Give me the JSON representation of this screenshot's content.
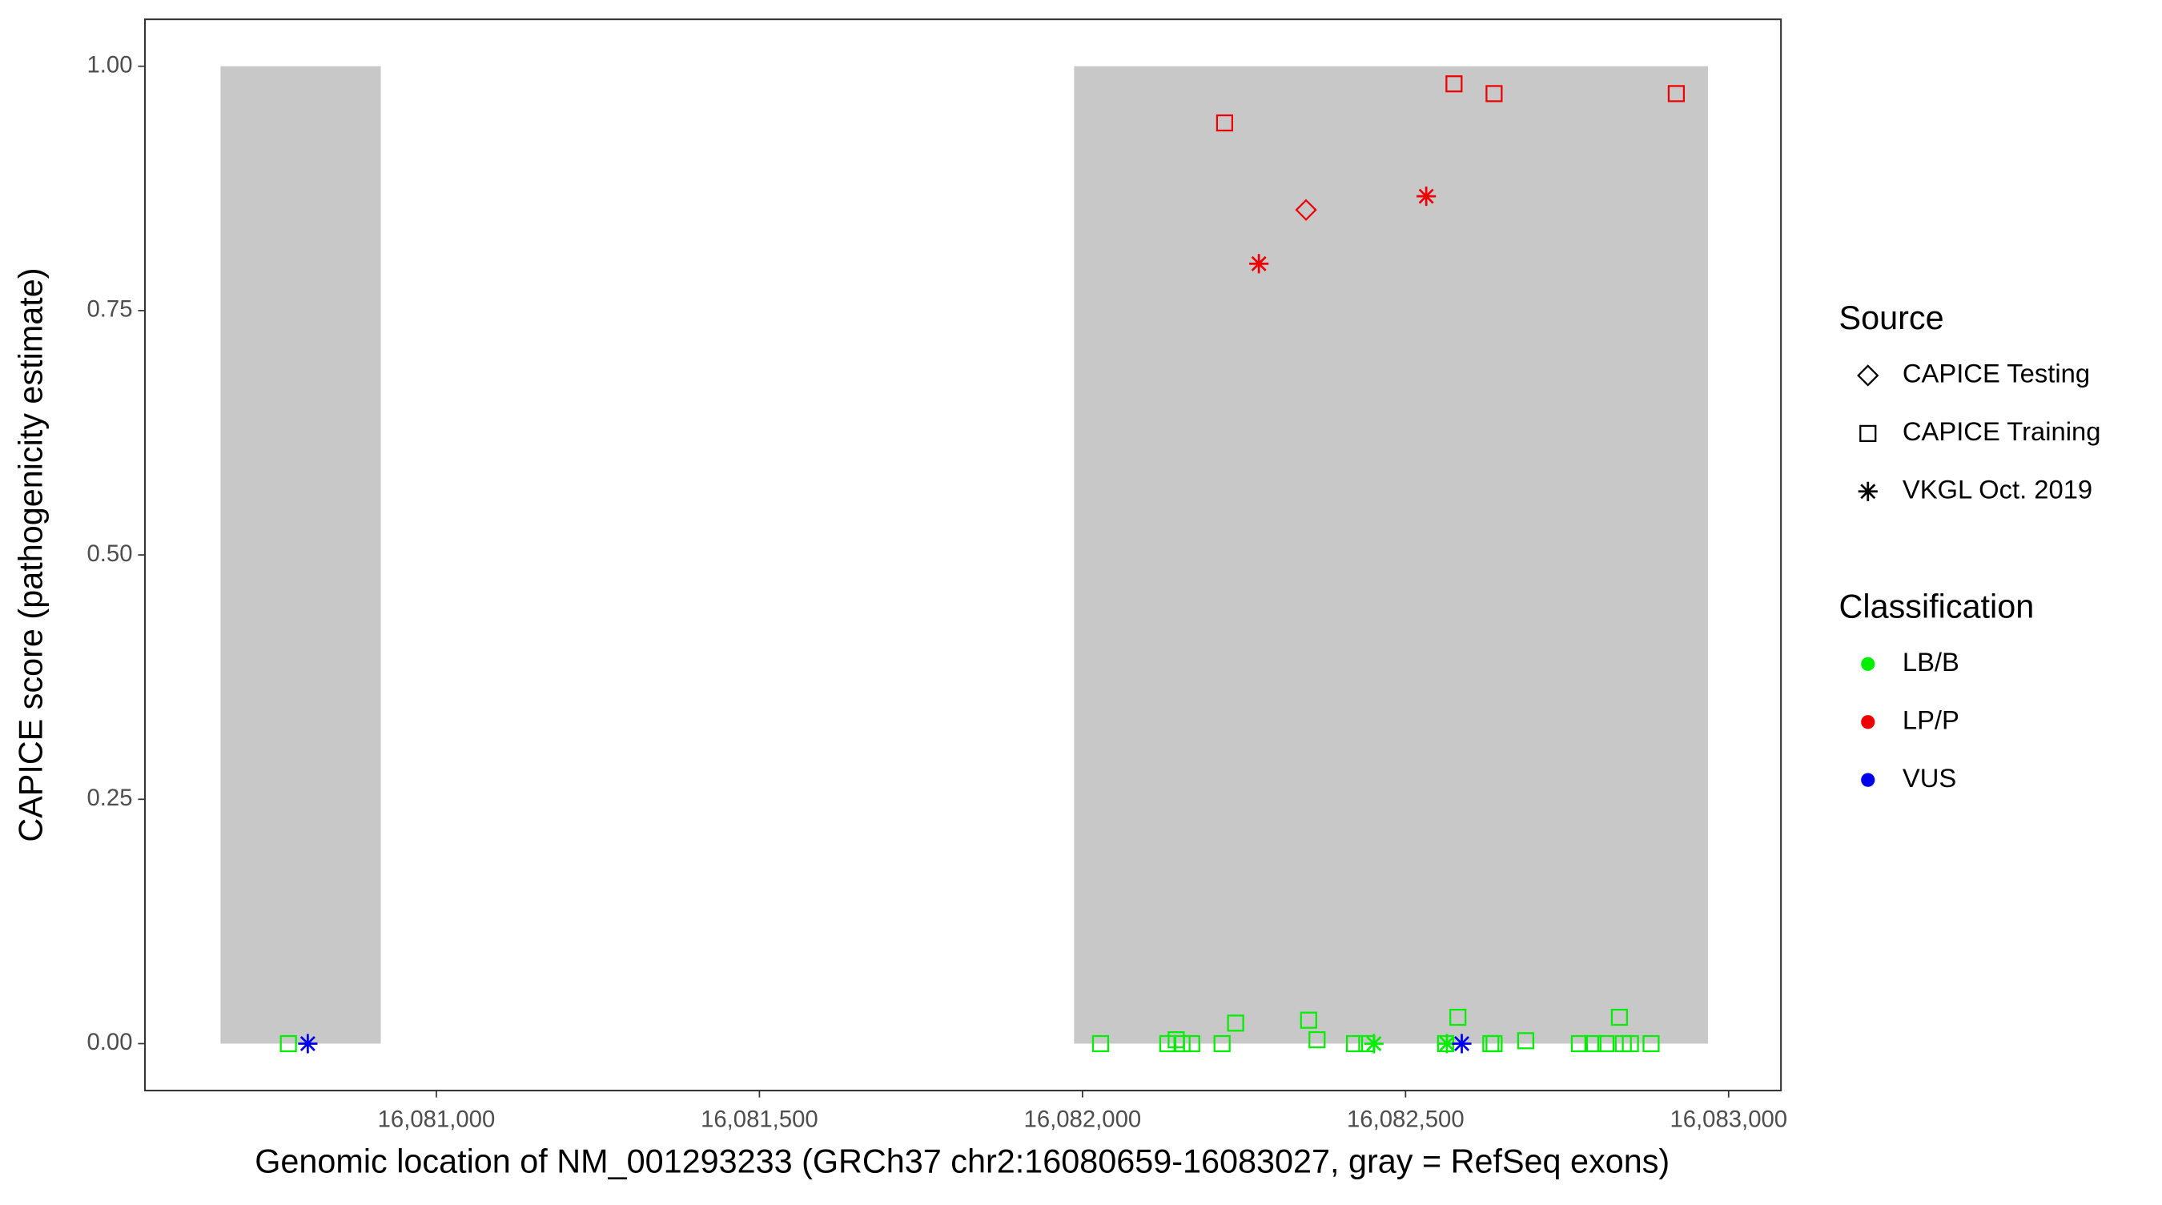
{
  "chart_data": {
    "type": "scatter",
    "x_label": "Genomic location of NM_001293233 (GRCh37 chr2:16080659-16083027, gray = RefSeq exons)",
    "y_label": "CAPICE score (pathogenicity estimate)",
    "xlim": [
      16080549,
      16083081
    ],
    "ylim": [
      -0.048,
      1.048
    ],
    "xticks": [
      {
        "value": 16081000,
        "label": "16,081,000"
      },
      {
        "value": 16081500,
        "label": "16,081,500"
      },
      {
        "value": 16082000,
        "label": "16,082,000"
      },
      {
        "value": 16082500,
        "label": "16,082,500"
      },
      {
        "value": 16083000,
        "label": "16,083,000"
      }
    ],
    "yticks": [
      {
        "value": 0,
        "label": "0.00"
      },
      {
        "value": 0.25,
        "label": "0.25"
      },
      {
        "value": 0.5,
        "label": "0.50"
      },
      {
        "value": 0.75,
        "label": "0.75"
      },
      {
        "value": 1,
        "label": "1.00"
      }
    ],
    "exons": [
      {
        "start": 16080666,
        "end": 16080914,
        "color": "#c8c8c8"
      },
      {
        "start": 16081987,
        "end": 16082968,
        "color": "#c8c8c8"
      }
    ],
    "source_legend": {
      "title": "Source",
      "items": [
        {
          "name": "CAPICE Testing",
          "shape": "diamond"
        },
        {
          "name": "CAPICE Training",
          "shape": "square"
        },
        {
          "name": "VKGL Oct. 2019",
          "shape": "asterisk"
        }
      ]
    },
    "color_legend": {
      "title": "Classification",
      "items": [
        {
          "name": "LB/B",
          "color": "#00ee00"
        },
        {
          "name": "LP/P",
          "color": "#ee0000"
        },
        {
          "name": "VUS",
          "color": "#0000ee"
        }
      ]
    },
    "series": [
      {
        "source": "CAPICE Training",
        "classification": "LP/P",
        "x": [
          16082220,
          16082575,
          16082637,
          16082919
        ],
        "y": [
          0.942,
          0.982,
          0.972,
          0.972
        ]
      },
      {
        "source": "CAPICE Testing",
        "classification": "LP/P",
        "x": [
          16082346
        ],
        "y": [
          0.853
        ]
      },
      {
        "source": "VKGL Oct. 2019",
        "classification": "LP/P",
        "x": [
          16082273,
          16082532
        ],
        "y": [
          0.798,
          0.867
        ]
      },
      {
        "source": "CAPICE Training",
        "classification": "LB/B",
        "x": [
          16080771,
          16082028,
          16082132,
          16082145,
          16082154,
          16082169,
          16082216,
          16082237,
          16082350,
          16082363,
          16082421,
          16082440,
          16082562,
          16082581,
          16082632,
          16082637,
          16082686,
          16082769,
          16082790,
          16082810,
          16082831,
          16082837,
          16082848,
          16082880
        ],
        "y": [
          0,
          0,
          0,
          0.004,
          0,
          0,
          0,
          0.021,
          0.024,
          0.004,
          0,
          0,
          0,
          0.027,
          0,
          0,
          0.003,
          0,
          0,
          0,
          0.027,
          0,
          0,
          0
        ]
      },
      {
        "source": "VKGL Oct. 2019",
        "classification": "LB/B",
        "x": [
          16082451,
          16082564
        ],
        "y": [
          0,
          0
        ]
      },
      {
        "source": "VKGL Oct. 2019",
        "classification": "VUS",
        "x": [
          16080801,
          16082587
        ],
        "y": [
          0,
          0
        ]
      }
    ]
  }
}
